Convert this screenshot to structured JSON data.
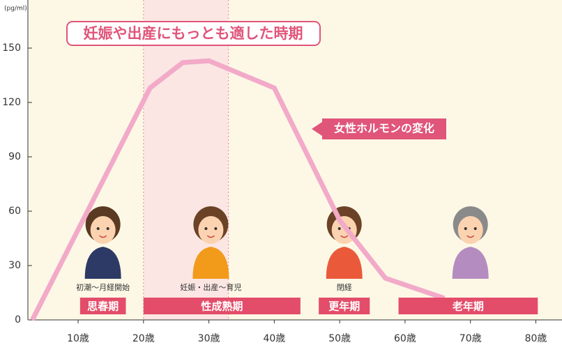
{
  "chart_data": {
    "type": "line",
    "title": "妊娠や出産にもっとも適した時期",
    "y_unit": "(pg/ml)",
    "annotation": "女性ホルモンの変化",
    "color": "#f2aac8",
    "x": [
      3,
      21,
      26,
      30,
      40,
      50,
      57,
      66
    ],
    "values": [
      0,
      128,
      142,
      143,
      128,
      55,
      23,
      12
    ],
    "xlim": [
      2,
      84
    ],
    "ylim": [
      0,
      175
    ],
    "xticks": [
      {
        "value": 10,
        "label": "10歳"
      },
      {
        "value": 20,
        "label": "20歳"
      },
      {
        "value": 30,
        "label": "30歳"
      },
      {
        "value": 40,
        "label": "40歳"
      },
      {
        "value": 50,
        "label": "50歳"
      },
      {
        "value": 60,
        "label": "60歳"
      },
      {
        "value": 70,
        "label": "70歳"
      },
      {
        "value": 80,
        "label": "80歳"
      }
    ],
    "yticks": [
      0,
      30,
      60,
      90,
      120,
      150
    ],
    "highlight": [
      20,
      33
    ],
    "stages": [
      {
        "label": "思春期",
        "caption": "初潮～月経開始",
        "start": 10.3,
        "end": 17.3
      },
      {
        "label": "性成熟期",
        "caption": "妊娠・出産～育児",
        "start": 20,
        "end": 44
      },
      {
        "label": "更年期",
        "caption": "閉経",
        "start": 46.8,
        "end": 54.6
      },
      {
        "label": "老年期",
        "start": 59,
        "end": 80.3
      }
    ]
  }
}
